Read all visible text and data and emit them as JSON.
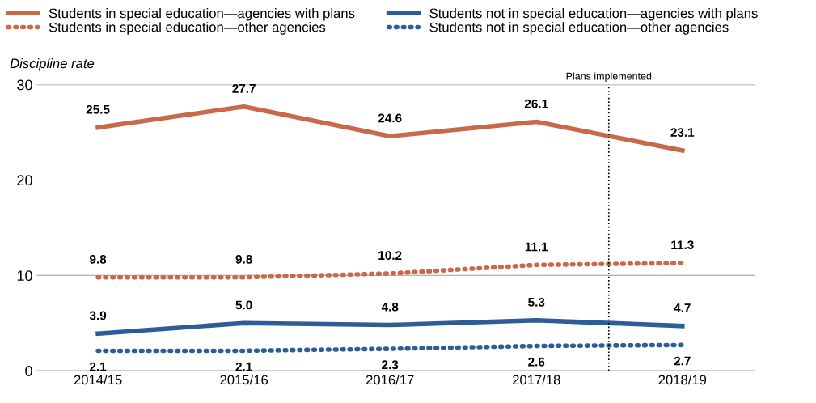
{
  "chart_data": {
    "type": "line",
    "ylabel": "Discipline rate",
    "x": [
      "2014",
      "2015",
      "2016",
      "2017",
      "2018"
    ],
    "xlim": [
      "2013-08",
      "2018-07"
    ],
    "xticks": [
      {
        "value": "2014",
        "label": "2014/15"
      },
      {
        "value": "2015",
        "label": "2015/16"
      },
      {
        "value": "2016",
        "label": "2016/17"
      },
      {
        "value": "2017",
        "label": "2017/18"
      },
      {
        "value": "2018",
        "label": "2018/19"
      }
    ],
    "series": [
      {
        "name": "Students in special education—agencies with plans",
        "color": "#c8694a",
        "line_style": "solid",
        "values": [
          25.5,
          27.7,
          24.6,
          26.1,
          23.1
        ],
        "value_labels": [
          "25.5",
          "27.7",
          "24.6",
          "26.1",
          "23.1"
        ]
      },
      {
        "name": "Students in special education—other agencies",
        "color": "#c8694a",
        "line_style": "dotted",
        "values": [
          9.8,
          9.8,
          10.2,
          11.1,
          11.3
        ],
        "value_labels": [
          "9.8",
          "9.8",
          "10.2",
          "11.1",
          "11.3"
        ]
      },
      {
        "name": "Students not in special education—agencies with plans",
        "color": "#2e5c96",
        "line_style": "solid",
        "values": [
          3.9,
          5.0,
          4.8,
          5.3,
          4.7
        ],
        "value_labels": [
          "3.9",
          "5.0",
          "4.8",
          "5.3",
          "4.7"
        ]
      },
      {
        "name": "Students not in special education—other agencies",
        "color": "#2e5c96",
        "line_style": "dotted",
        "values": [
          2.1,
          2.1,
          2.3,
          2.6,
          2.7
        ],
        "value_labels": [
          "2.1",
          "2.1",
          "2.3",
          "2.6",
          "2.7"
        ]
      }
    ],
    "ylim": [
      0,
      30
    ],
    "yticks": [
      0,
      10,
      20,
      30
    ],
    "grid": "y",
    "legend": "top",
    "marker": "none",
    "ref_lines": [
      {
        "axis": "x",
        "value": "2017-07",
        "label": "Plans implemented",
        "color": "#000000",
        "line_style": "dotted"
      }
    ]
  }
}
